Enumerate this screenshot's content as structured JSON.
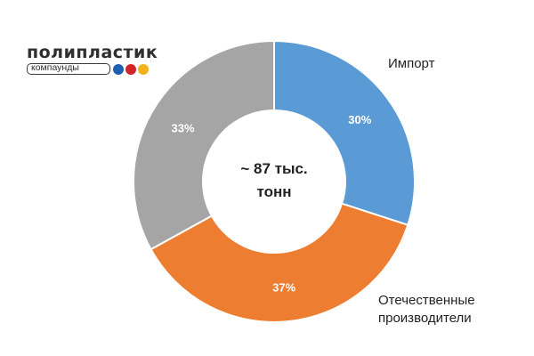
{
  "logo": {
    "name": "полипластик",
    "subtitle": "компаунды",
    "dot_colors": [
      "#1f5fb0",
      "#d2232a",
      "#f2b21b"
    ]
  },
  "chart_data": {
    "type": "pie",
    "donut": true,
    "center_text": [
      "~ 87 тыс.",
      "тонн"
    ],
    "slices": [
      {
        "label": "Импорт",
        "value": 30,
        "value_label": "30%",
        "color": "#5b9bd5"
      },
      {
        "label": "Отечественные производители",
        "value": 37,
        "value_label": "37%",
        "color": "#ed7d31"
      },
      {
        "label": "",
        "value": 33,
        "value_label": "33%",
        "color": "#a5a5a5"
      }
    ],
    "start": "12 o'clock",
    "direction": "clockwise",
    "legend": "outside slice labels, right"
  },
  "labels": {
    "import": "Импорт",
    "domestic_line1": "Отечественные",
    "domestic_line2": "производители"
  }
}
